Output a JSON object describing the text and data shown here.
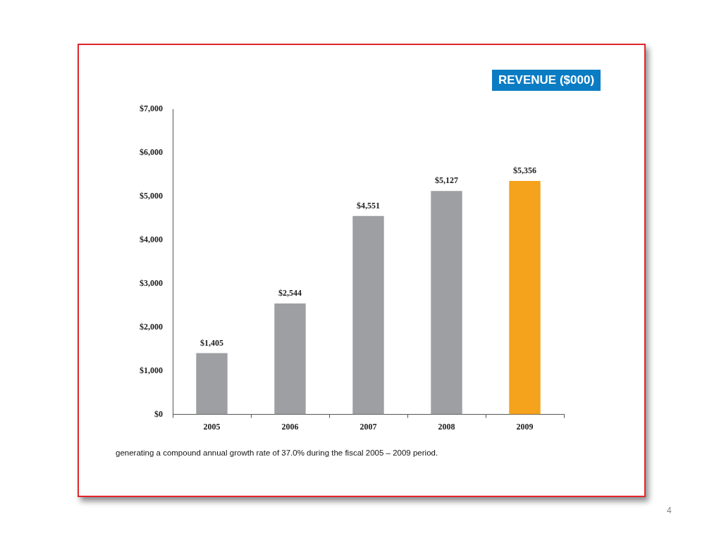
{
  "chart_data": {
    "type": "bar",
    "title": "REVENUE ($000)",
    "categories": [
      "2005",
      "2006",
      "2007",
      "2008",
      "2009"
    ],
    "values": [
      1405,
      2544,
      4551,
      5127,
      5356
    ],
    "colors": [
      "#9d9fa2",
      "#9d9fa2",
      "#9d9fa2",
      "#9d9fa2",
      "#f5a21c"
    ],
    "value_labels": [
      "$1,405",
      "$2,544",
      "$4,551",
      "$5,127",
      "$5,356"
    ],
    "ylim": [
      0,
      7000
    ],
    "yticks": [
      {
        "value": 0,
        "label": "$0"
      },
      {
        "value": 1000,
        "label": "$1,000"
      },
      {
        "value": 2000,
        "label": "$2,000"
      },
      {
        "value": 3000,
        "label": "$3,000"
      },
      {
        "value": 4000,
        "label": "$4,000"
      },
      {
        "value": 5000,
        "label": "$5,000"
      },
      {
        "value": 6000,
        "label": "$6,000"
      },
      {
        "value": 7000,
        "label": "$7,000"
      }
    ],
    "grid": false,
    "legend": false,
    "annotations": [
      "generating a compound annual growth rate of 37.0% during the fiscal 2005 – 2009 period.",
      "4"
    ]
  }
}
